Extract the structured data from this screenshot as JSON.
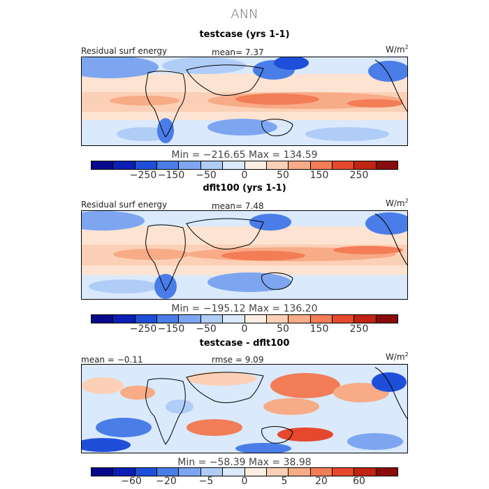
{
  "title": "ANN",
  "units": "W/m",
  "units_exp": "2",
  "colorbar_colors": [
    "#08088c",
    "#0c1fb4",
    "#1f4fd9",
    "#4a7de8",
    "#7ea6f0",
    "#b0cdf7",
    "#dae9fb",
    "#fdeee3",
    "#fbd0b6",
    "#f7ab86",
    "#f27d57",
    "#e5482d",
    "#c02412",
    "#8a0b0b"
  ],
  "panels": [
    {
      "title": "testcase (yrs 1-1)",
      "left_label": "Residual surf energy",
      "center_label": "mean=   7.37",
      "stats": "Min = −216.65  Max = 134.59",
      "ticks": [
        "−250",
        "−150",
        "−50",
        "0",
        "50",
        "150",
        "250"
      ]
    },
    {
      "title": "dflt100 (yrs 1-1)",
      "left_label": "Residual surf energy",
      "center_label": "mean=   7.48",
      "stats": "Min = −195.12  Max = 136.20",
      "ticks": [
        "−250",
        "−150",
        "−50",
        "0",
        "50",
        "150",
        "250"
      ]
    },
    {
      "title": "testcase - dflt100",
      "left_label": "mean =  −0.11",
      "center_label": "rmse =    9.09",
      "stats": "Min = −58.39  Max =   38.98",
      "ticks": [
        "−60",
        "−20",
        "−5",
        "0",
        "5",
        "20",
        "60"
      ]
    }
  ],
  "chart_data": [
    {
      "type": "heatmap",
      "title": "testcase (yrs 1-1)",
      "variable": "Residual surf energy",
      "units": "W/m2",
      "mean": 7.37,
      "min": -216.65,
      "max": 134.59,
      "colorbar_ticks": [
        -250,
        -150,
        -50,
        0,
        50,
        150,
        250
      ]
    },
    {
      "type": "heatmap",
      "title": "dflt100 (yrs 1-1)",
      "variable": "Residual surf energy",
      "units": "W/m2",
      "mean": 7.48,
      "min": -195.12,
      "max": 136.2,
      "colorbar_ticks": [
        -250,
        -150,
        -50,
        0,
        50,
        150,
        250
      ]
    },
    {
      "type": "heatmap",
      "title": "testcase - dflt100",
      "units": "W/m2",
      "mean": -0.11,
      "rmse": 9.09,
      "min": -58.39,
      "max": 38.98,
      "colorbar_ticks": [
        -60,
        -20,
        -5,
        0,
        5,
        20,
        60
      ]
    }
  ]
}
